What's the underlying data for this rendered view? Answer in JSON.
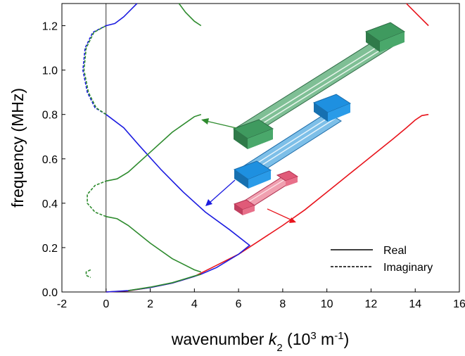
{
  "chart_data": {
    "type": "line",
    "xlabel": [
      {
        "text": "wavenumber "
      },
      {
        "text": "k",
        "style": "italic"
      },
      {
        "text": "2",
        "style": "sub"
      },
      {
        "text": " (10"
      },
      {
        "text": "3",
        "style": "sup"
      },
      {
        "text": " m"
      },
      {
        "text": "-1",
        "style": "sup"
      },
      {
        "text": ")"
      }
    ],
    "ylabel": "frequency (MHz)",
    "xlim": [
      -2,
      16
    ],
    "ylim": [
      0,
      1.3
    ],
    "xticks": [
      -2,
      0,
      2,
      4,
      6,
      8,
      10,
      12,
      14,
      16
    ],
    "yticks": [
      {
        "value": 0,
        "label": "0.0"
      },
      0.2,
      0.4,
      0.6,
      0.8,
      {
        "value": 1,
        "label": "1.0"
      },
      1.2
    ],
    "vline": 0,
    "legend": {
      "position": "lower right",
      "entries": [
        {
          "name": "Real",
          "dashed": false
        },
        {
          "name": "Imaginary",
          "dashed": true
        }
      ]
    },
    "series": [
      {
        "color": "#e8141c",
        "dashed": false,
        "x": [
          0,
          1,
          2,
          3,
          4,
          5,
          6,
          7,
          8,
          9,
          10,
          11,
          12,
          13,
          13.6,
          14,
          14.3,
          14.6
        ],
        "values": [
          0,
          0.005,
          0.02,
          0.04,
          0.07,
          0.12,
          0.17,
          0.235,
          0.3,
          0.37,
          0.45,
          0.53,
          0.61,
          0.69,
          0.74,
          0.775,
          0.795,
          0.8
        ]
      },
      {
        "color": "#e8141c",
        "dashed": false,
        "x": [
          14.6,
          14.2,
          13.8,
          13.6
        ],
        "values": [
          1.2,
          1.24,
          1.28,
          1.3
        ]
      },
      {
        "color": "#1c1ce0",
        "dashed": false,
        "x": [
          0,
          1,
          2,
          3,
          4,
          4.3,
          5,
          6,
          6.5,
          5.6,
          4.5,
          3.5,
          2.5,
          1.5,
          0.8,
          0
        ],
        "values": [
          0,
          0.006,
          0.02,
          0.04,
          0.07,
          0.08,
          0.11,
          0.17,
          0.21,
          0.28,
          0.36,
          0.45,
          0.55,
          0.66,
          0.74,
          0.8
        ]
      },
      {
        "color": "#1c1ce0",
        "dashed": false,
        "x": [
          0,
          0.4,
          0.8,
          1.2,
          1.4
        ],
        "values": [
          1.2,
          1.21,
          1.24,
          1.28,
          1.3
        ]
      },
      {
        "color": "#1c1ce0",
        "dashed": true,
        "x": [
          0,
          -0.5,
          -0.85,
          -1.05,
          -0.95,
          -0.6,
          0
        ],
        "values": [
          0.8,
          0.83,
          0.9,
          1,
          1.1,
          1.17,
          1.2
        ]
      },
      {
        "color": "#2e8b2e",
        "dashed": true,
        "x": [
          0,
          -0.45,
          -0.8,
          -1,
          -0.9,
          -0.55,
          0
        ],
        "values": [
          0.8,
          0.83,
          0.9,
          1,
          1.1,
          1.17,
          1.2
        ]
      },
      {
        "color": "#2e8b2e",
        "dashed": false,
        "x": [
          0,
          0.5,
          1,
          2,
          3,
          4,
          4.3
        ],
        "values": [
          0.34,
          0.33,
          0.3,
          0.22,
          0.15,
          0.1,
          0.09
        ]
      },
      {
        "color": "#2e8b2e",
        "dashed": false,
        "x": [
          0,
          0.5,
          1,
          2,
          3,
          4,
          4.3
        ],
        "values": [
          0.5,
          0.51,
          0.54,
          0.63,
          0.72,
          0.79,
          0.8
        ]
      },
      {
        "color": "#2e8b2e",
        "dashed": false,
        "x": [
          3.3,
          3.6,
          4,
          4.3
        ],
        "values": [
          1.3,
          1.26,
          1.22,
          1.2
        ]
      },
      {
        "color": "#2e8b2e",
        "dashed": false,
        "x": [
          1,
          2,
          3,
          4,
          4.3
        ],
        "values": [
          0.006,
          0.022,
          0.042,
          0.072,
          0.08
        ]
      },
      {
        "color": "#2e8b2e",
        "dashed": true,
        "x": [
          0,
          -0.5,
          -0.85,
          -0.85,
          -0.5,
          0
        ],
        "values": [
          0.34,
          0.36,
          0.4,
          0.44,
          0.48,
          0.5
        ]
      },
      {
        "color": "#2e8b2e",
        "dashed": true,
        "x": [
          -0.7,
          -0.9,
          -0.9,
          -0.7
        ],
        "values": [
          0.1,
          0.09,
          0.075,
          0.065
        ]
      }
    ]
  }
}
